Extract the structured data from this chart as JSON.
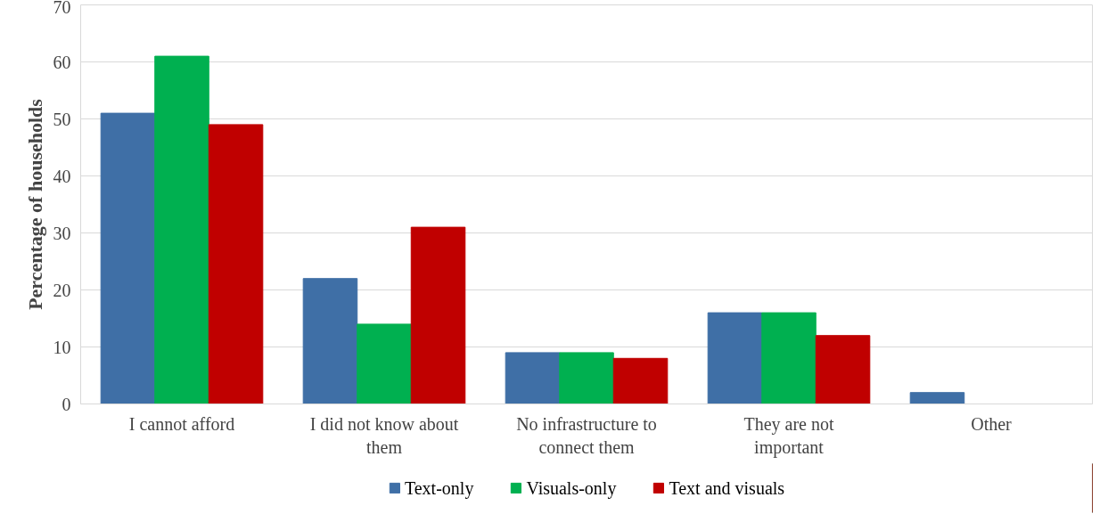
{
  "chart_data": {
    "type": "bar",
    "ylabel": "Percentage of households",
    "categories": [
      "I cannot afford",
      "I did not know about them",
      "No infrastructure to connect them",
      "They are not important",
      "Other"
    ],
    "series": [
      {
        "name": "Text-only",
        "color": "#3f6fa6",
        "values": [
          51,
          22,
          9,
          16,
          2
        ]
      },
      {
        "name": "Visuals-only",
        "color": "#00b050",
        "values": [
          61,
          14,
          9,
          16,
          0
        ]
      },
      {
        "name": "Text and visuals",
        "color": "#c00000",
        "values": [
          49,
          31,
          8,
          12,
          0
        ]
      }
    ],
    "ylim": [
      0,
      70
    ],
    "yticks": [
      0,
      10,
      20,
      30,
      40,
      50,
      60,
      70
    ],
    "grid": "y",
    "legend": "bottom"
  }
}
